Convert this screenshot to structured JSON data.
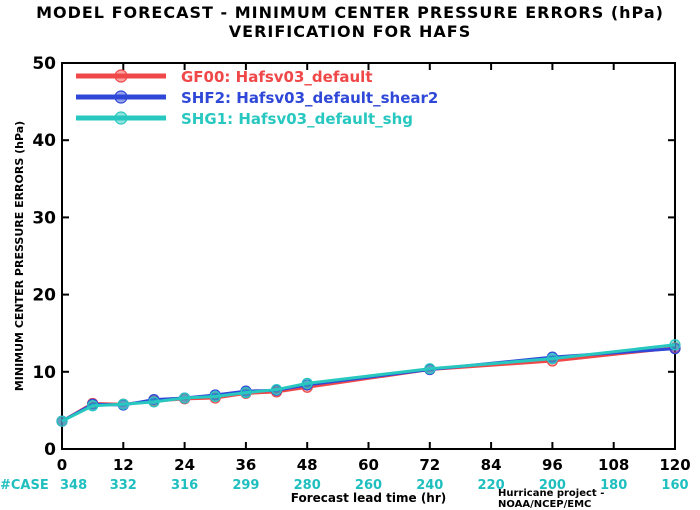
{
  "header": {
    "title_line1": "MODEL FORECAST - MINIMUM CENTER PRESSURE ERRORS (hPa)",
    "title_line2": "VERIFICATION FOR HAFS"
  },
  "footer": {
    "credit": "Hurricane project - NOAA/NCEP/EMC"
  },
  "chart_data": {
    "type": "line",
    "title": "MODEL FORECAST - MINIMUM CENTER PRESSURE ERRORS (hPa)",
    "subtitle": "VERIFICATION FOR HAFS",
    "xlabel": "Forecast lead time (hr)",
    "ylabel": "MINIMUM CENTER PRESSURE ERRORS (hPa)",
    "xlim": [
      0,
      120
    ],
    "ylim": [
      0,
      50
    ],
    "xticks": [
      0,
      12,
      24,
      36,
      48,
      60,
      72,
      84,
      96,
      108,
      120
    ],
    "yticks": [
      0,
      10,
      20,
      30,
      40,
      50
    ],
    "legend_position": "top-left",
    "grid": false,
    "cases_label": "#CASE",
    "cases": [
      {
        "x": 0,
        "n": 348
      },
      {
        "x": 12,
        "n": 332
      },
      {
        "x": 24,
        "n": 316
      },
      {
        "x": 36,
        "n": 299
      },
      {
        "x": 48,
        "n": 280
      },
      {
        "x": 60,
        "n": 260
      },
      {
        "x": 72,
        "n": 240
      },
      {
        "x": 84,
        "n": 220
      },
      {
        "x": 96,
        "n": 200
      },
      {
        "x": 108,
        "n": 180
      },
      {
        "x": 120,
        "n": 160
      }
    ],
    "x": [
      0,
      6,
      12,
      18,
      24,
      30,
      36,
      42,
      48,
      72,
      96,
      120
    ],
    "series": [
      {
        "name": "GF00: Hafsv03_default",
        "color": "#f04848",
        "values": [
          3.6,
          5.9,
          5.8,
          6.2,
          6.5,
          6.6,
          7.2,
          7.4,
          8.0,
          10.3,
          11.4,
          13.1
        ]
      },
      {
        "name": "SHF2: Hafsv03_default_shear2",
        "color": "#2f48d8",
        "values": [
          3.6,
          5.8,
          5.7,
          6.4,
          6.6,
          7.0,
          7.5,
          7.6,
          8.3,
          10.3,
          11.9,
          13.0
        ]
      },
      {
        "name": "SHG1: Hafsv03_default_shg",
        "color": "#28c8c0",
        "values": [
          3.6,
          5.6,
          5.8,
          6.1,
          6.6,
          6.8,
          7.3,
          7.7,
          8.5,
          10.4,
          11.7,
          13.5
        ]
      }
    ]
  }
}
